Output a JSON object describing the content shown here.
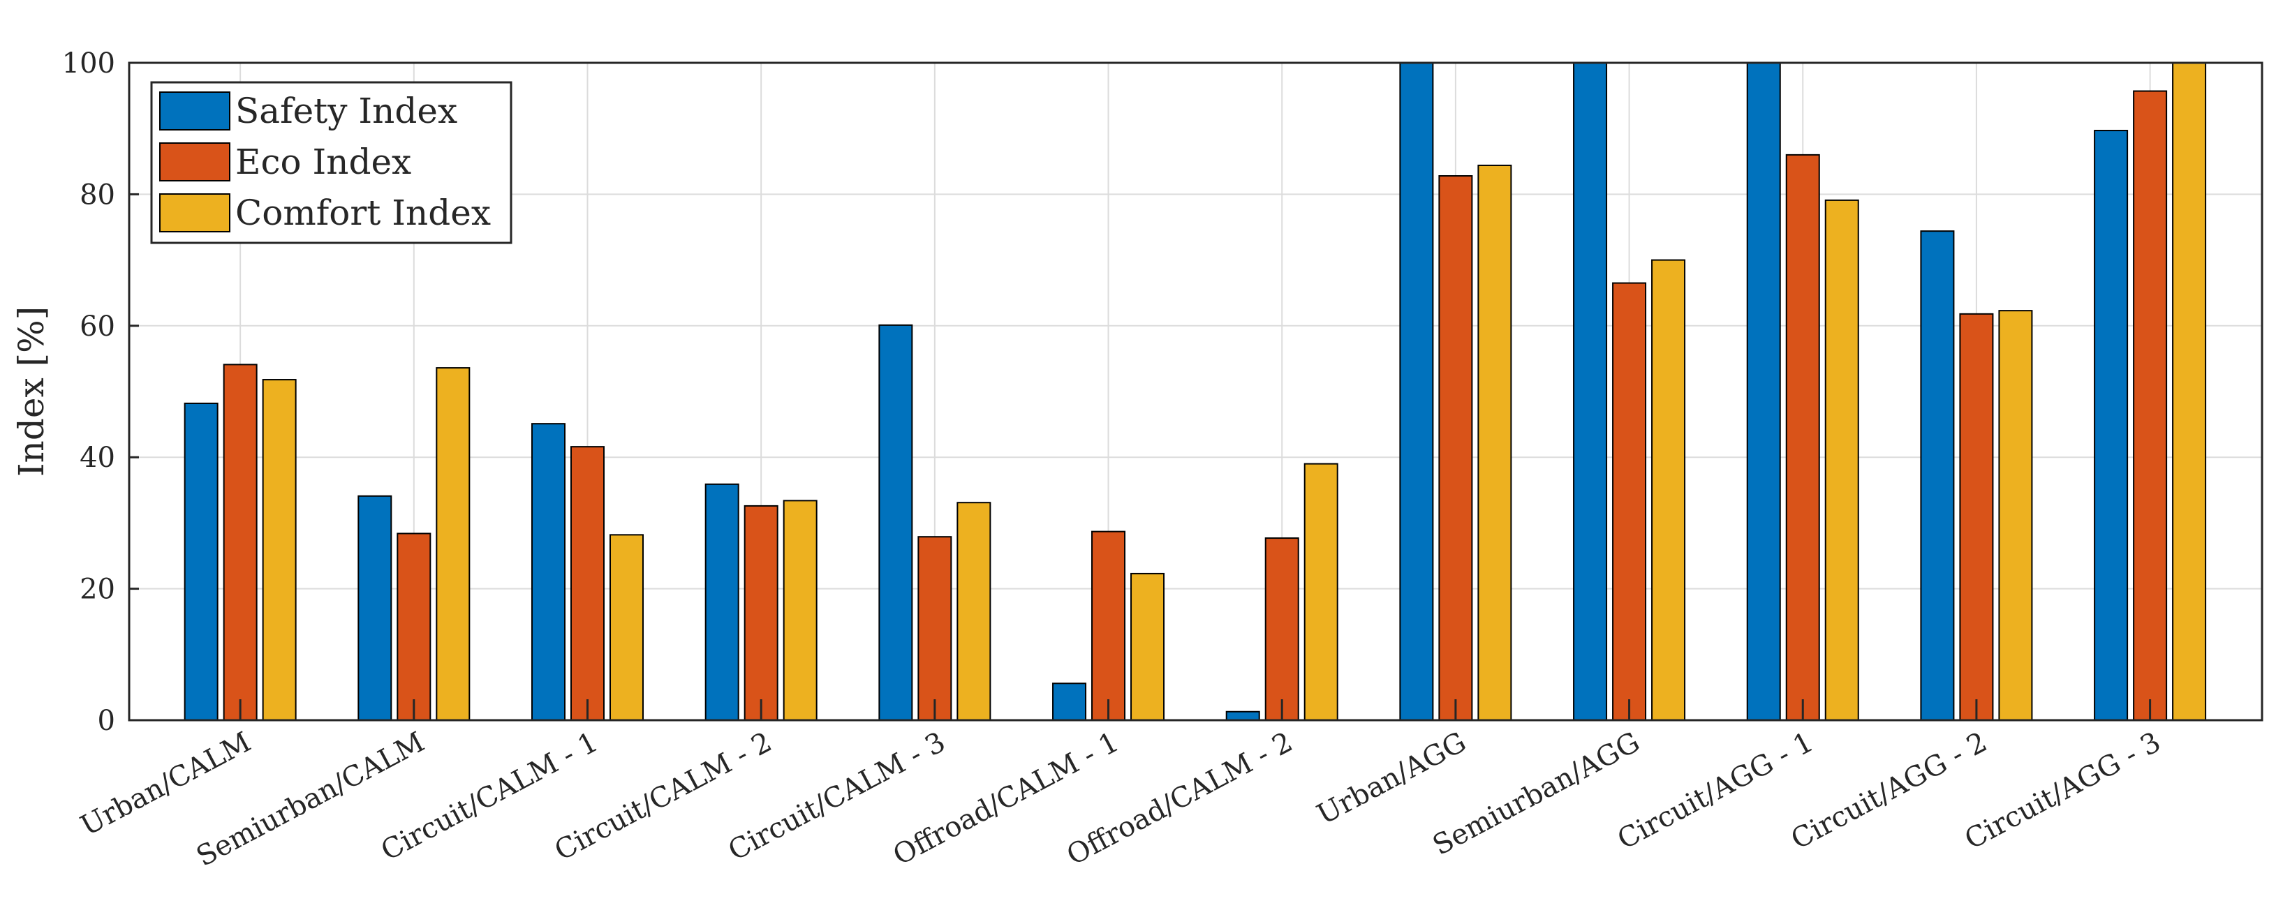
{
  "chart_data": {
    "type": "bar",
    "ylabel": "Index [%]",
    "xlabel": "",
    "title": "",
    "ylim": [
      0,
      100
    ],
    "yticks": [
      0,
      20,
      40,
      60,
      80,
      100
    ],
    "grid": true,
    "legend_position": "top-left",
    "categories": [
      "Urban/CALM",
      "Semiurban/CALM",
      "Circuit/CALM - 1",
      "Circuit/CALM - 2",
      "Circuit/CALM - 3",
      "Offroad/CALM - 1",
      "Offroad/CALM - 2",
      "Urban/AGG",
      "Semiurban/AGG",
      "Circuit/AGG - 1",
      "Circuit/AGG - 2",
      "Circuit/AGG - 3"
    ],
    "series": [
      {
        "name": "Safety Index",
        "color": "#0072BD",
        "values": [
          48.2,
          34.1,
          45.1,
          35.9,
          60.1,
          5.6,
          1.3,
          100,
          100,
          100,
          74.4,
          89.7
        ]
      },
      {
        "name": "Eco Index",
        "color": "#D95319",
        "values": [
          54.1,
          28.4,
          41.6,
          32.6,
          27.9,
          28.7,
          27.7,
          82.8,
          66.5,
          86.0,
          61.8,
          95.7
        ]
      },
      {
        "name": "Comfort Index",
        "color": "#EDB120",
        "values": [
          51.8,
          53.6,
          28.2,
          33.4,
          33.1,
          22.3,
          39.0,
          84.4,
          70.0,
          79.1,
          62.3,
          100
        ]
      }
    ]
  }
}
